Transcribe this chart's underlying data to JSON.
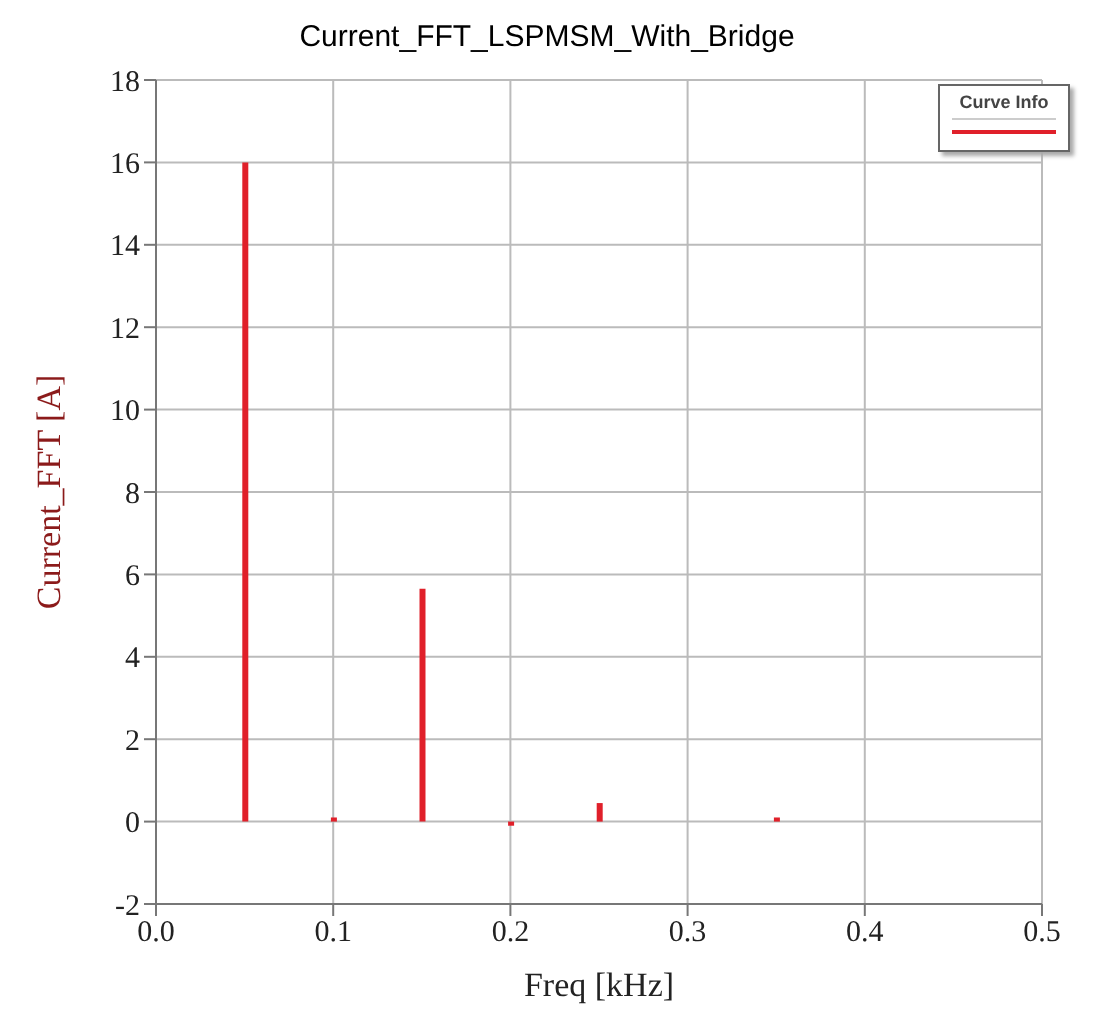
{
  "chart_data": {
    "type": "bar",
    "title": "Current_FFT_LSPMSM_With_Bridge",
    "xlabel": "Freq [kHz]",
    "ylabel": "Current_FFT [A]",
    "legend_title": "Curve Info",
    "x": [
      0.05,
      0.1,
      0.15,
      0.2,
      0.25,
      0.35
    ],
    "series": [
      {
        "color": "#e0202a",
        "values": [
          16.0,
          0.1,
          5.65,
          -0.1,
          0.45,
          0.1
        ]
      }
    ],
    "xlim": [
      0,
      0.5
    ],
    "xticks": [
      {
        "value": 0,
        "label": "0.0"
      },
      0.1,
      0.2,
      0.3,
      0.4,
      0.5
    ],
    "ylim": [
      -2,
      18
    ],
    "yticks": [
      -2,
      0,
      2,
      4,
      6,
      8,
      10,
      12,
      14,
      16,
      18
    ],
    "grid": true
  }
}
